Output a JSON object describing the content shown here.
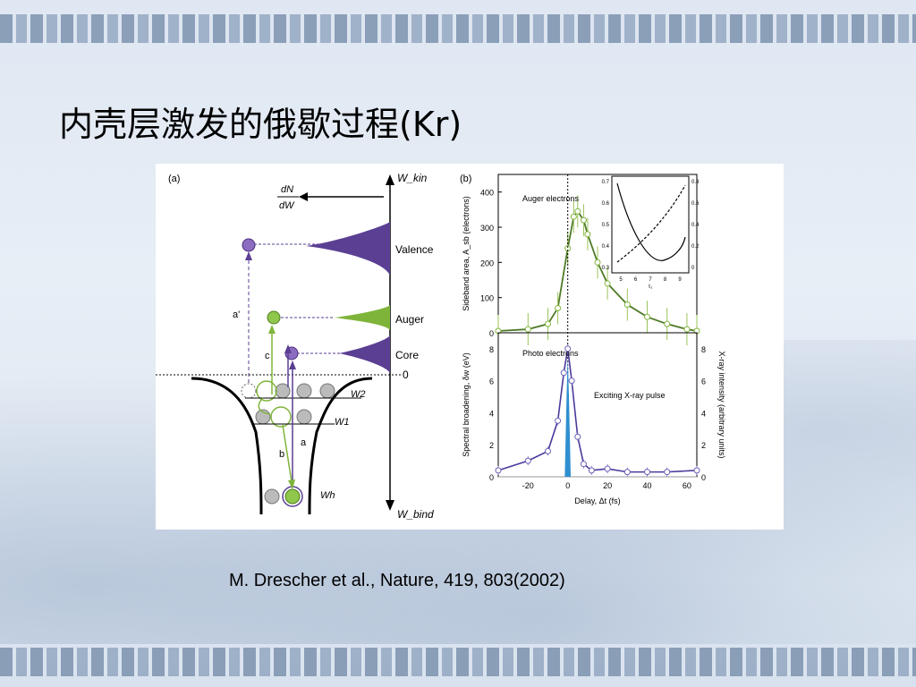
{
  "slide": {
    "title": "内壳层激发的俄歇过程(Kr)",
    "citation": "M. Drescher et al., Nature, 419, 803(2002)"
  },
  "panel_a": {
    "label": "(a)",
    "y_top_label": "W_kin",
    "y_bottom_label": "W_bind",
    "dndw_num": "dN",
    "dndw_den": "dW",
    "levels": [
      "Valence",
      "Auger",
      "Core",
      "0"
    ],
    "well_levels": [
      "W2",
      "W1",
      "Wh"
    ],
    "arrows": [
      "a'",
      "c",
      "a",
      "b"
    ],
    "colors": {
      "violet": "#6a4a9e",
      "green": "#7fb43a"
    }
  },
  "chart_data": [
    {
      "type": "line",
      "title": "(b)",
      "ylabel": "Sideband area, A_sb (electrons)",
      "ylim": [
        0,
        450
      ],
      "yticks": [
        "0",
        "100",
        "200",
        "300",
        "400"
      ],
      "annotation": "Auger electrons",
      "series": [
        {
          "name": "Auger electrons",
          "x": [
            -35,
            -20,
            -10,
            -5,
            0,
            3,
            5,
            8,
            10,
            15,
            20,
            30,
            40,
            50,
            60,
            65
          ],
          "values": [
            5,
            10,
            25,
            70,
            240,
            330,
            345,
            320,
            280,
            200,
            140,
            80,
            45,
            25,
            10,
            5
          ]
        }
      ]
    },
    {
      "type": "line",
      "title": "",
      "ylabel": "Sideband area, A_sb (electrons)",
      "xlim": [
        0,
        1
      ],
      "annotation": "inset",
      "xticks": [
        "5",
        "6",
        "7",
        "8",
        "9"
      ],
      "xlabel": "τ₁",
      "yticks_left": [
        "0.3",
        "0.4",
        "0.5",
        "0.6",
        "0.7"
      ],
      "yticks_right": [
        "0",
        "0.2",
        "0.4",
        "0.6",
        "0.8"
      ]
    },
    {
      "type": "line",
      "title": "",
      "xlabel": "Delay, Δt (fs)",
      "ylabel": "Spectral broadening, δw (eV)",
      "y2label": "X-ray intensity (arbitrary units)",
      "xlim": [
        -35,
        65
      ],
      "ylim": [
        0,
        9
      ],
      "xticks": [
        "-20",
        "0",
        "20",
        "40",
        "60"
      ],
      "yticks": [
        "0",
        "2",
        "4",
        "6",
        "8"
      ],
      "annotations": [
        "Photo electrons",
        "Exciting X-ray pulse"
      ],
      "series": [
        {
          "name": "Photo electrons",
          "x": [
            -35,
            -20,
            -10,
            -5,
            -2,
            0,
            2,
            5,
            8,
            12,
            20,
            30,
            40,
            50,
            65
          ],
          "values": [
            0.4,
            1.0,
            1.6,
            3.5,
            6.5,
            8.0,
            6.0,
            2.5,
            0.8,
            0.4,
            0.5,
            0.3,
            0.3,
            0.3,
            0.4
          ]
        }
      ]
    }
  ]
}
